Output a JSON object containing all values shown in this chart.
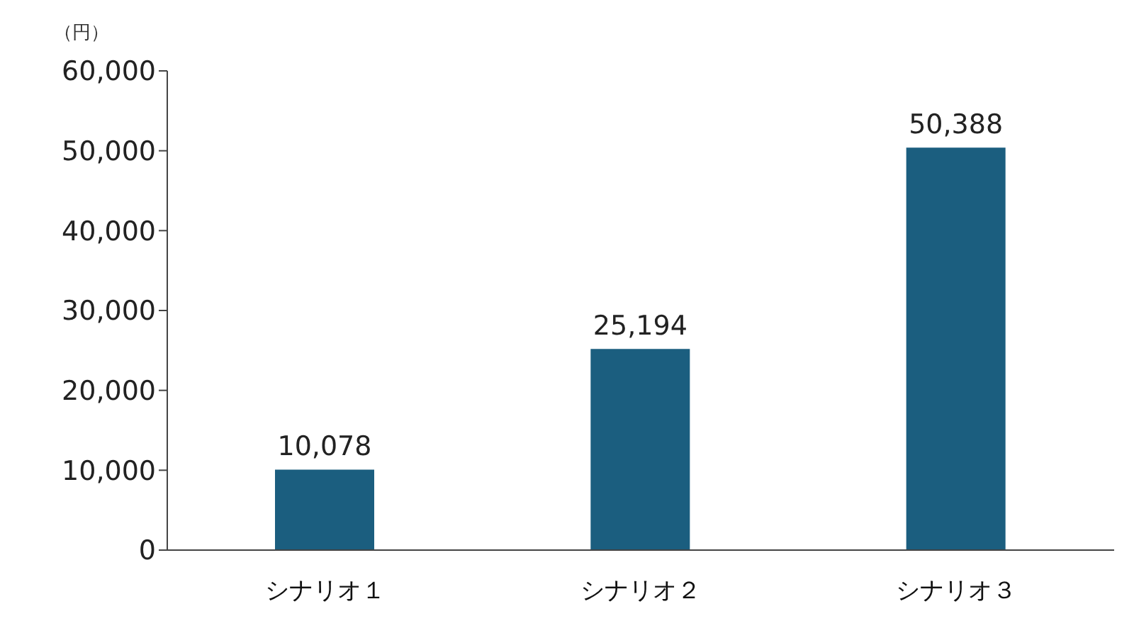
{
  "chart_data": {
    "type": "bar",
    "ylabel": "（円）",
    "categories": [
      "シナリオ１",
      "シナリオ２",
      "シナリオ３"
    ],
    "values": [
      10078,
      25194,
      50388
    ],
    "color": "#1b5e7f",
    "value_labels": [
      "10,078",
      "25,194",
      "50,388"
    ],
    "ylim": [
      0,
      60000
    ],
    "yticks": [
      0,
      {
        "value": 10000,
        "label": "10,000"
      },
      {
        "value": 20000,
        "label": "20,000"
      },
      {
        "value": 30000,
        "label": "30,000"
      },
      {
        "value": 40000,
        "label": "40,000"
      },
      {
        "value": 50000,
        "label": "50,000"
      },
      {
        "value": 60000,
        "label": "60,000"
      }
    ],
    "grid": false
  }
}
